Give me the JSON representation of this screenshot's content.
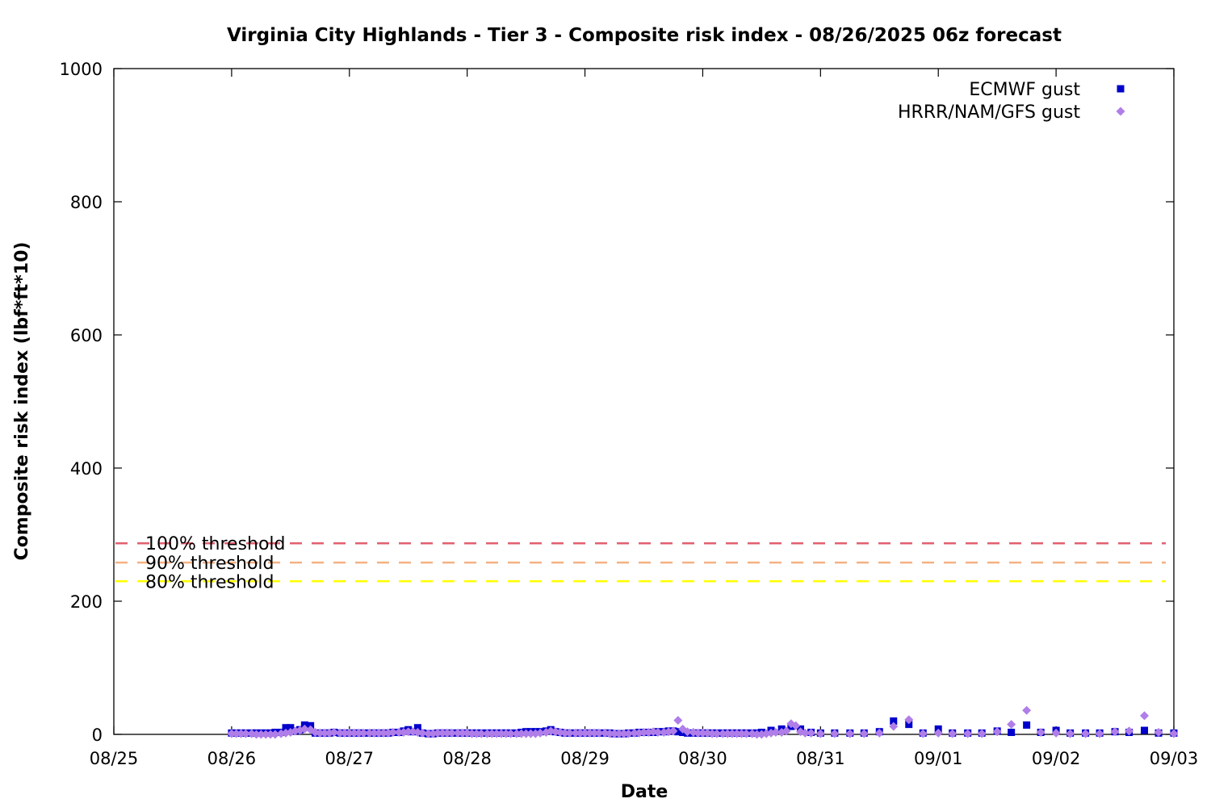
{
  "chart_data": {
    "type": "scatter",
    "title": "Virginia City Highlands - Tier 3 - Composite risk index - 08/26/2025 06z forecast",
    "xlabel": "Date",
    "ylabel": "Composite risk index (lbf*ft*10)",
    "xlim": [
      "08/25",
      "09/03"
    ],
    "ylim": [
      0,
      1000
    ],
    "x_ticks": [
      "08/25",
      "08/26",
      "08/27",
      "08/28",
      "08/29",
      "08/30",
      "08/31",
      "09/01",
      "09/02",
      "09/03"
    ],
    "y_ticks": [
      0,
      200,
      400,
      600,
      800,
      1000
    ],
    "grid": false,
    "legend": "top-right",
    "thresholds": [
      {
        "label": "100% threshold",
        "value": 287,
        "color": "#e06070"
      },
      {
        "label": "90% threshold",
        "value": 258,
        "color": "#f4b183"
      },
      {
        "label": "80% threshold",
        "value": 230,
        "color": "#ffff00"
      }
    ],
    "series": [
      {
        "name": "ECMWF gust",
        "color": "#0000cc",
        "marker": "square",
        "points": [
          [
            1.0,
            2
          ],
          [
            1.04,
            2
          ],
          [
            1.08,
            2
          ],
          [
            1.12,
            2
          ],
          [
            1.17,
            2
          ],
          [
            1.21,
            2
          ],
          [
            1.25,
            2
          ],
          [
            1.29,
            2
          ],
          [
            1.33,
            2
          ],
          [
            1.37,
            3
          ],
          [
            1.42,
            3
          ],
          [
            1.46,
            10
          ],
          [
            1.5,
            10
          ],
          [
            1.54,
            5
          ],
          [
            1.58,
            7
          ],
          [
            1.62,
            14
          ],
          [
            1.67,
            13
          ],
          [
            1.71,
            2
          ],
          [
            1.75,
            2
          ],
          [
            1.79,
            2
          ],
          [
            1.83,
            2
          ],
          [
            1.87,
            3
          ],
          [
            1.92,
            2
          ],
          [
            1.96,
            2
          ],
          [
            2.0,
            2
          ],
          [
            2.04,
            2
          ],
          [
            2.08,
            2
          ],
          [
            2.12,
            2
          ],
          [
            2.17,
            2
          ],
          [
            2.21,
            2
          ],
          [
            2.25,
            2
          ],
          [
            2.29,
            2
          ],
          [
            2.33,
            2
          ],
          [
            2.37,
            3
          ],
          [
            2.42,
            3
          ],
          [
            2.46,
            5
          ],
          [
            2.5,
            7
          ],
          [
            2.54,
            4
          ],
          [
            2.58,
            10
          ],
          [
            2.62,
            2
          ],
          [
            2.67,
            1
          ],
          [
            2.71,
            1
          ],
          [
            2.75,
            2
          ],
          [
            2.79,
            2
          ],
          [
            2.83,
            2
          ],
          [
            2.87,
            2
          ],
          [
            2.92,
            2
          ],
          [
            2.96,
            2
          ],
          [
            3.0,
            2
          ],
          [
            3.04,
            2
          ],
          [
            3.08,
            2
          ],
          [
            3.12,
            2
          ],
          [
            3.17,
            2
          ],
          [
            3.21,
            2
          ],
          [
            3.25,
            2
          ],
          [
            3.29,
            2
          ],
          [
            3.33,
            2
          ],
          [
            3.37,
            2
          ],
          [
            3.42,
            2
          ],
          [
            3.46,
            3
          ],
          [
            3.5,
            4
          ],
          [
            3.54,
            4
          ],
          [
            3.58,
            4
          ],
          [
            3.62,
            4
          ],
          [
            3.67,
            5
          ],
          [
            3.71,
            7
          ],
          [
            3.75,
            4
          ],
          [
            3.79,
            3
          ],
          [
            3.83,
            2
          ],
          [
            3.87,
            2
          ],
          [
            3.92,
            2
          ],
          [
            3.96,
            2
          ],
          [
            4.0,
            2
          ],
          [
            4.04,
            2
          ],
          [
            4.08,
            2
          ],
          [
            4.12,
            2
          ],
          [
            4.17,
            2
          ],
          [
            4.21,
            2
          ],
          [
            4.25,
            1
          ],
          [
            4.29,
            1
          ],
          [
            4.33,
            1
          ],
          [
            4.37,
            2
          ],
          [
            4.42,
            2
          ],
          [
            4.46,
            3
          ],
          [
            4.5,
            3
          ],
          [
            4.54,
            3
          ],
          [
            4.58,
            3
          ],
          [
            4.62,
            4
          ],
          [
            4.67,
            4
          ],
          [
            4.71,
            5
          ],
          [
            4.75,
            5
          ],
          [
            4.79,
            4
          ],
          [
            4.83,
            3
          ],
          [
            4.87,
            2
          ],
          [
            4.92,
            2
          ],
          [
            4.96,
            2
          ],
          [
            5.0,
            2
          ],
          [
            5.04,
            2
          ],
          [
            5.08,
            2
          ],
          [
            5.12,
            2
          ],
          [
            5.17,
            2
          ],
          [
            5.21,
            2
          ],
          [
            5.25,
            2
          ],
          [
            5.29,
            2
          ],
          [
            5.33,
            2
          ],
          [
            5.37,
            2
          ],
          [
            5.42,
            2
          ],
          [
            5.46,
            2
          ],
          [
            5.5,
            3
          ],
          [
            5.58,
            6
          ],
          [
            5.67,
            8
          ],
          [
            5.75,
            12
          ],
          [
            5.83,
            8
          ],
          [
            5.92,
            3
          ],
          [
            6.0,
            2
          ],
          [
            6.12,
            2
          ],
          [
            6.25,
            2
          ],
          [
            6.37,
            2
          ],
          [
            6.5,
            4
          ],
          [
            6.62,
            20
          ],
          [
            6.75,
            15
          ],
          [
            6.87,
            2
          ],
          [
            7.0,
            8
          ],
          [
            7.12,
            2
          ],
          [
            7.25,
            2
          ],
          [
            7.37,
            2
          ],
          [
            7.5,
            5
          ],
          [
            7.62,
            3
          ],
          [
            7.75,
            14
          ],
          [
            7.87,
            3
          ],
          [
            8.0,
            6
          ],
          [
            8.12,
            2
          ],
          [
            8.25,
            2
          ],
          [
            8.37,
            2
          ],
          [
            8.5,
            4
          ],
          [
            8.62,
            3
          ],
          [
            8.75,
            6
          ],
          [
            8.87,
            2
          ],
          [
            9.0,
            2
          ]
        ]
      },
      {
        "name": "HRRR/NAM/GFS gust",
        "color": "#b07ee8",
        "marker": "diamond",
        "points": [
          [
            1.0,
            1
          ],
          [
            1.04,
            1
          ],
          [
            1.08,
            1
          ],
          [
            1.12,
            1
          ],
          [
            1.17,
            1
          ],
          [
            1.21,
            0
          ],
          [
            1.25,
            0
          ],
          [
            1.29,
            0
          ],
          [
            1.33,
            0
          ],
          [
            1.37,
            0
          ],
          [
            1.42,
            1
          ],
          [
            1.46,
            2
          ],
          [
            1.5,
            3
          ],
          [
            1.54,
            5
          ],
          [
            1.58,
            6
          ],
          [
            1.62,
            8
          ],
          [
            1.67,
            7
          ],
          [
            1.71,
            3
          ],
          [
            1.75,
            2
          ],
          [
            1.79,
            2
          ],
          [
            1.83,
            2
          ],
          [
            1.87,
            3
          ],
          [
            1.92,
            2
          ],
          [
            1.96,
            2
          ],
          [
            2.0,
            2
          ],
          [
            2.04,
            2
          ],
          [
            2.08,
            2
          ],
          [
            2.12,
            2
          ],
          [
            2.17,
            2
          ],
          [
            2.21,
            2
          ],
          [
            2.25,
            2
          ],
          [
            2.29,
            2
          ],
          [
            2.33,
            2
          ],
          [
            2.37,
            3
          ],
          [
            2.42,
            3
          ],
          [
            2.46,
            3
          ],
          [
            2.5,
            4
          ],
          [
            2.54,
            4
          ],
          [
            2.58,
            3
          ],
          [
            2.62,
            2
          ],
          [
            2.67,
            1
          ],
          [
            2.71,
            1
          ],
          [
            2.75,
            2
          ],
          [
            2.79,
            2
          ],
          [
            2.83,
            2
          ],
          [
            2.87,
            2
          ],
          [
            2.92,
            2
          ],
          [
            2.96,
            2
          ],
          [
            3.0,
            2
          ],
          [
            3.04,
            1
          ],
          [
            3.08,
            1
          ],
          [
            3.12,
            1
          ],
          [
            3.17,
            1
          ],
          [
            3.21,
            1
          ],
          [
            3.25,
            1
          ],
          [
            3.29,
            1
          ],
          [
            3.33,
            1
          ],
          [
            3.37,
            1
          ],
          [
            3.42,
            1
          ],
          [
            3.46,
            1
          ],
          [
            3.5,
            1
          ],
          [
            3.54,
            1
          ],
          [
            3.58,
            1
          ],
          [
            3.62,
            2
          ],
          [
            3.67,
            3
          ],
          [
            3.71,
            5
          ],
          [
            3.75,
            4
          ],
          [
            3.79,
            3
          ],
          [
            3.83,
            2
          ],
          [
            3.87,
            2
          ],
          [
            3.92,
            2
          ],
          [
            3.96,
            2
          ],
          [
            4.0,
            2
          ],
          [
            4.04,
            2
          ],
          [
            4.08,
            2
          ],
          [
            4.12,
            2
          ],
          [
            4.17,
            2
          ],
          [
            4.21,
            1
          ],
          [
            4.25,
            1
          ],
          [
            4.29,
            1
          ],
          [
            4.33,
            1
          ],
          [
            4.37,
            1
          ],
          [
            4.42,
            2
          ],
          [
            4.46,
            2
          ],
          [
            4.5,
            3
          ],
          [
            4.54,
            3
          ],
          [
            4.58,
            4
          ],
          [
            4.62,
            3
          ],
          [
            4.67,
            3
          ],
          [
            4.71,
            4
          ],
          [
            4.75,
            5
          ],
          [
            4.79,
            21
          ],
          [
            4.83,
            8
          ],
          [
            4.87,
            4
          ],
          [
            4.92,
            3
          ],
          [
            4.96,
            2
          ],
          [
            5.0,
            2
          ],
          [
            5.04,
            2
          ],
          [
            5.08,
            1
          ],
          [
            5.12,
            1
          ],
          [
            5.17,
            1
          ],
          [
            5.21,
            1
          ],
          [
            5.25,
            1
          ],
          [
            5.29,
            1
          ],
          [
            5.33,
            1
          ],
          [
            5.37,
            1
          ],
          [
            5.42,
            1
          ],
          [
            5.46,
            0
          ],
          [
            5.5,
            0
          ],
          [
            5.54,
            1
          ],
          [
            5.58,
            2
          ],
          [
            5.62,
            3
          ],
          [
            5.67,
            3
          ],
          [
            5.71,
            5
          ],
          [
            5.75,
            16
          ],
          [
            5.79,
            13
          ],
          [
            5.83,
            4
          ],
          [
            5.87,
            2
          ],
          [
            5.92,
            2
          ],
          [
            6.0,
            1
          ],
          [
            6.12,
            1
          ],
          [
            6.25,
            1
          ],
          [
            6.37,
            1
          ],
          [
            6.5,
            2
          ],
          [
            6.62,
            12
          ],
          [
            6.75,
            22
          ],
          [
            6.87,
            1
          ],
          [
            7.0,
            2
          ],
          [
            7.12,
            1
          ],
          [
            7.25,
            1
          ],
          [
            7.37,
            1
          ],
          [
            7.5,
            4
          ],
          [
            7.62,
            15
          ],
          [
            7.75,
            36
          ],
          [
            7.87,
            3
          ],
          [
            8.0,
            2
          ],
          [
            8.12,
            1
          ],
          [
            8.25,
            1
          ],
          [
            8.37,
            1
          ],
          [
            8.5,
            4
          ],
          [
            8.62,
            5
          ],
          [
            8.75,
            28
          ],
          [
            8.87,
            3
          ],
          [
            9.0,
            1
          ]
        ]
      }
    ]
  }
}
